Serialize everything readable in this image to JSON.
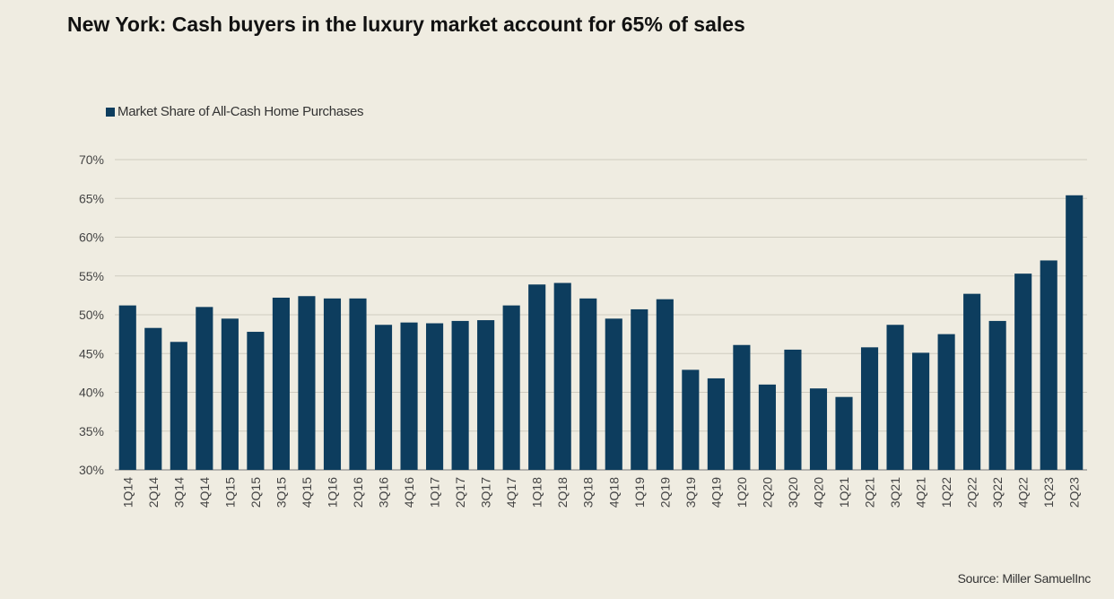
{
  "chart_data": {
    "type": "bar",
    "title": "New York: Cash buyers in the luxury market account for 65% of sales",
    "legend": [
      "Market Share of All-Cash Home Purchases"
    ],
    "legend_position": "top-left",
    "categories": [
      "1Q14",
      "2Q14",
      "3Q14",
      "4Q14",
      "1Q15",
      "2Q15",
      "3Q15",
      "4Q15",
      "1Q16",
      "2Q16",
      "3Q16",
      "4Q16",
      "1Q17",
      "2Q17",
      "3Q17",
      "4Q17",
      "1Q18",
      "2Q18",
      "3Q18",
      "4Q18",
      "1Q19",
      "2Q19",
      "3Q19",
      "4Q19",
      "1Q20",
      "2Q20",
      "3Q20",
      "4Q20",
      "1Q21",
      "2Q21",
      "3Q21",
      "4Q21",
      "1Q22",
      "2Q22",
      "3Q22",
      "4Q22",
      "1Q23",
      "2Q23"
    ],
    "series": [
      {
        "name": "Market Share of All-Cash Home Purchases",
        "values": [
          51.2,
          48.3,
          46.5,
          51.0,
          49.5,
          47.8,
          52.2,
          52.4,
          52.1,
          52.1,
          48.7,
          49.0,
          48.9,
          49.2,
          49.3,
          51.2,
          53.9,
          54.1,
          52.1,
          49.5,
          50.7,
          52.0,
          42.9,
          41.8,
          46.1,
          41.0,
          45.5,
          40.5,
          39.4,
          45.8,
          48.7,
          45.1,
          47.5,
          52.7,
          49.2,
          55.3,
          57.0,
          65.4
        ],
        "color": "#0d3d5e"
      }
    ],
    "ylim": [
      30,
      70
    ],
    "yticks": [
      "30%",
      "35%",
      "40%",
      "45%",
      "50%",
      "55%",
      "60%",
      "65%",
      "70%"
    ],
    "ytick_values": [
      30,
      35,
      40,
      45,
      50,
      55,
      60,
      65,
      70
    ],
    "xlabel": "",
    "ylabel": "",
    "grid": true,
    "source": "Source: Miller SamuelInc"
  }
}
